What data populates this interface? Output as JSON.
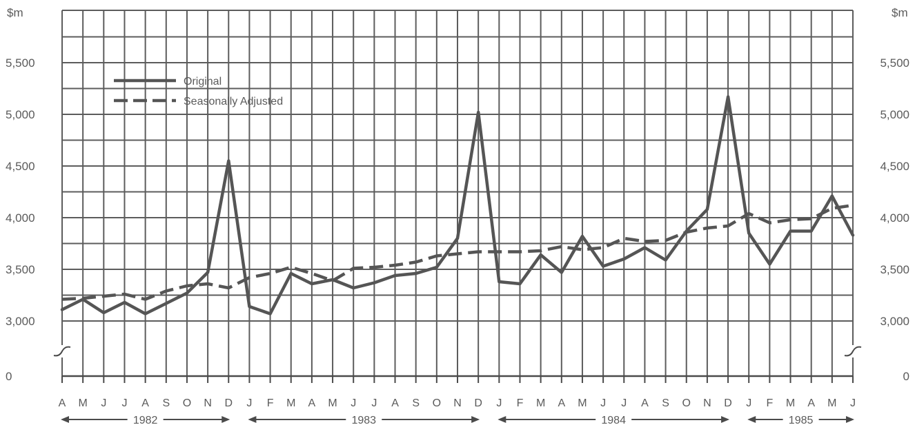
{
  "chart_data": {
    "type": "line",
    "title": "",
    "xlabel": "",
    "ylabel": "",
    "unit_label_left": "$m",
    "unit_label_right": "$m",
    "ylim": [
      3000,
      5500
    ],
    "y_ticks": [
      "5,500",
      "5,000",
      "4,500",
      "4,000",
      "3,500",
      "3,000",
      "0"
    ],
    "axis_break": true,
    "grid": true,
    "legend_position": "top-left",
    "x": [
      "A",
      "M",
      "J",
      "J",
      "A",
      "S",
      "O",
      "N",
      "D",
      "J",
      "F",
      "M",
      "A",
      "M",
      "J",
      "J",
      "A",
      "S",
      "O",
      "N",
      "D",
      "J",
      "F",
      "M",
      "A",
      "M",
      "J",
      "J",
      "A",
      "S",
      "O",
      "N",
      "D",
      "J",
      "F",
      "M",
      "A",
      "M",
      "J"
    ],
    "years": [
      {
        "label": "1982",
        "start_index": 0,
        "end_index": 8
      },
      {
        "label": "1983",
        "start_index": 9,
        "end_index": 20
      },
      {
        "label": "1984",
        "start_index": 21,
        "end_index": 32
      },
      {
        "label": "1985",
        "start_index": 33,
        "end_index": 38
      }
    ],
    "series": [
      {
        "name": "Original",
        "style": "solid",
        "color": "#555555",
        "values": [
          3110,
          3210,
          3080,
          3180,
          3070,
          3170,
          3270,
          3470,
          4550,
          3140,
          3070,
          3460,
          3360,
          3400,
          3320,
          3370,
          3440,
          3460,
          3520,
          3800,
          5020,
          3380,
          3360,
          3640,
          3470,
          3820,
          3530,
          3600,
          3710,
          3590,
          3870,
          4080,
          5170,
          3850,
          3550,
          3870,
          3870,
          4210,
          3830
        ]
      },
      {
        "name": "Seasonally Adjusted",
        "style": "dashed",
        "color": "#555555",
        "values": [
          3210,
          3220,
          3240,
          3260,
          3210,
          3290,
          3340,
          3360,
          3320,
          3420,
          3460,
          3520,
          3460,
          3390,
          3510,
          3520,
          3540,
          3570,
          3630,
          3650,
          3670,
          3670,
          3670,
          3680,
          3720,
          3690,
          3710,
          3800,
          3770,
          3780,
          3860,
          3900,
          3920,
          4040,
          3950,
          3980,
          3990,
          4090,
          4120
        ]
      }
    ]
  }
}
